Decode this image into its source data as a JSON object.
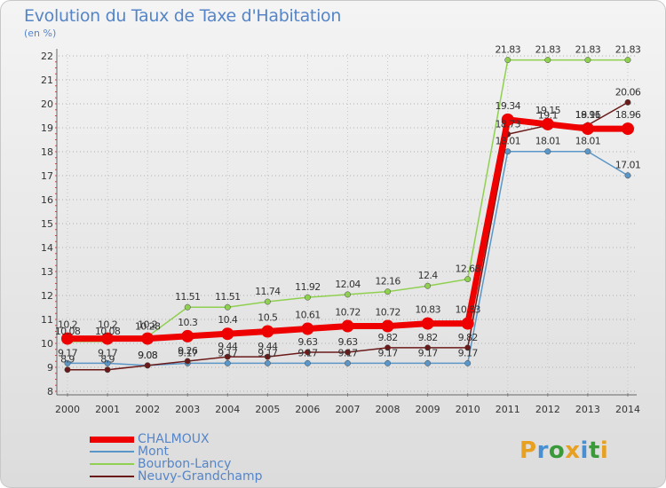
{
  "header": {
    "title": "Evolution du Taux de Taxe d'Habitation",
    "subtitle": "(en %)"
  },
  "logo": {
    "text": "Proxiti",
    "letter_colors": [
      "#e8a020",
      "#4a90d0",
      "#3a9a3a",
      "#e8a020",
      "#4a90d0",
      "#3a9a3a",
      "#e8a020"
    ]
  },
  "chart_data": {
    "type": "line",
    "title": "Evolution du Taux de Taxe d'Habitation",
    "subtitle": "(en %)",
    "xlabel": "",
    "ylabel": "(en %)",
    "x": [
      "2000",
      "2001",
      "2002",
      "2003",
      "2004",
      "2005",
      "2006",
      "2007",
      "2008",
      "2009",
      "2010",
      "2011",
      "2012",
      "2013",
      "2014"
    ],
    "ylim": [
      8,
      22
    ],
    "yticks": [
      8,
      9,
      10,
      11,
      12,
      13,
      14,
      15,
      16,
      17,
      18,
      19,
      20,
      21,
      22
    ],
    "grid": "horizontal dotted",
    "legend_position": "bottom-left",
    "series": [
      {
        "name": "Bourbon-Lancy",
        "color": "#90d050",
        "width": 1.5,
        "values": [
          10.08,
          10.08,
          10.28,
          11.51,
          11.51,
          11.74,
          11.92,
          12.04,
          12.16,
          12.4,
          12.68,
          21.83,
          21.83,
          21.83,
          21.83
        ],
        "labels": [
          "10.08",
          "10.08",
          "10.28",
          "11.51",
          "11.51",
          "11.74",
          "11.92",
          "12.04",
          "12.16",
          "12.4",
          "12.68",
          "21.83",
          "21.83",
          "21.83",
          "21.83"
        ]
      },
      {
        "name": "Mont",
        "color": "#5a96c8",
        "width": 1.5,
        "values": [
          9.17,
          9.17,
          9.08,
          9.17,
          9.17,
          9.17,
          9.17,
          9.17,
          9.17,
          9.17,
          9.17,
          18.01,
          18.01,
          18.01,
          17.01
        ],
        "labels": [
          "9.17",
          "9.17",
          "9.08",
          "9.17",
          "9.17",
          "9.17",
          "9.17",
          "9.17",
          "9.17",
          "9.17",
          "9.17",
          "18.01",
          "18.01",
          "18.01",
          "17.01"
        ]
      },
      {
        "name": "Neuvy-Grandchamp",
        "color": "#6b1a1a",
        "width": 1.5,
        "values": [
          8.9,
          8.9,
          9.08,
          9.26,
          9.44,
          9.44,
          9.63,
          9.63,
          9.82,
          9.82,
          9.82,
          18.73,
          19.1,
          19.11,
          20.06
        ],
        "labels": [
          "8.9",
          "8.9",
          "9.08",
          "9.26",
          "9.44",
          "9.44",
          "9.63",
          "9.63",
          "9.82",
          "9.82",
          "9.82",
          "18.73",
          "19.1",
          "19.11",
          "20.06"
        ]
      },
      {
        "name": "CHALMOUX",
        "color": "#ee0000",
        "width": 7,
        "values": [
          10.2,
          10.2,
          10.2,
          10.3,
          10.4,
          10.5,
          10.61,
          10.72,
          10.72,
          10.83,
          10.83,
          19.34,
          19.15,
          18.96,
          18.96
        ],
        "labels": [
          "10.2",
          "10.2",
          "10.2",
          "10.3",
          "10.4",
          "10.5",
          "10.61",
          "10.72",
          "10.72",
          "10.83",
          "10.83",
          "19.34",
          "19.15",
          "18.96",
          "18.96"
        ]
      }
    ],
    "legend": [
      {
        "name": "CHALMOUX",
        "color": "#ee0000",
        "width": 7
      },
      {
        "name": "Mont",
        "color": "#5a96c8",
        "width": 1.5
      },
      {
        "name": "Bourbon-Lancy",
        "color": "#90d050",
        "width": 1.5
      },
      {
        "name": "Neuvy-Grandchamp",
        "color": "#6b1a1a",
        "width": 1.5
      }
    ]
  }
}
